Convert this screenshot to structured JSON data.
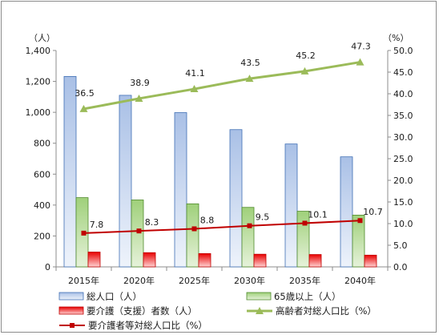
{
  "chart_data": {
    "type": "bar",
    "categories": [
      "2015年",
      "2020年",
      "2025年",
      "2030年",
      "2035年",
      "2040年"
    ],
    "y_left": {
      "unit_label": "（人）",
      "range": [
        0,
        1400
      ],
      "ticks": [
        "0",
        "200",
        "400",
        "600",
        "800",
        "1,000",
        "1,200",
        "1,400"
      ],
      "tick_values": [
        0,
        200,
        400,
        600,
        800,
        1000,
        1200,
        1400
      ]
    },
    "y_right": {
      "unit_label": "（%）",
      "range": [
        0,
        50
      ],
      "ticks": [
        "0.0",
        "5.0",
        "10.0",
        "15.0",
        "20.0",
        "25.0",
        "30.0",
        "35.0",
        "40.0",
        "45.0",
        "50.0"
      ],
      "tick_values": [
        0,
        5,
        10,
        15,
        20,
        25,
        30,
        35,
        40,
        45,
        50
      ]
    },
    "grid": false,
    "legend_position": "bottom",
    "series": [
      {
        "name": "総人口（人）",
        "type": "bar",
        "axis": "left",
        "color": "#4f81bd",
        "values": [
          1232,
          1110,
          998,
          888,
          795,
          712
        ]
      },
      {
        "name": "65歳以上（人）",
        "type": "bar",
        "axis": "left",
        "color": "#70ad47",
        "values": [
          448,
          433,
          408,
          385,
          360,
          335
        ]
      },
      {
        "name": "要介護（支援）者数（人）",
        "type": "bar",
        "axis": "left",
        "color": "#ff0000",
        "values": [
          96,
          92,
          86,
          82,
          80,
          76
        ]
      },
      {
        "name": "高齢者対総人口比（%）",
        "type": "line",
        "axis": "right",
        "color": "#9bbb59",
        "marker": "triangle",
        "values": [
          36.5,
          38.9,
          41.1,
          43.5,
          45.2,
          47.3
        ],
        "labels": [
          "36.5",
          "38.9",
          "41.1",
          "43.5",
          "45.2",
          "47.3"
        ]
      },
      {
        "name": "要介護者等対総人口比（%）",
        "type": "line",
        "axis": "right",
        "color": "#c00000",
        "marker": "square",
        "values": [
          7.8,
          8.3,
          8.8,
          9.5,
          10.1,
          10.7
        ],
        "labels": [
          "7.8",
          "8.3",
          "8.8",
          "9.5",
          "10.1",
          "10.7"
        ]
      }
    ]
  }
}
